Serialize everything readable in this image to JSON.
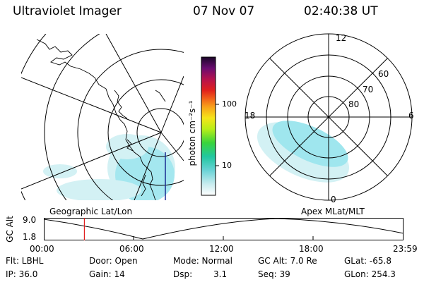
{
  "header": {
    "title": "Ultraviolet Imager",
    "date": "07 Nov 07",
    "time": "02:40:38 UT"
  },
  "colorbar": {
    "unit_label": "photon cm⁻²s⁻¹",
    "tick_100": "100",
    "tick_10": "10"
  },
  "polar": {
    "mlt_12": "12",
    "mlt_18": "18",
    "mlt_6": "6",
    "mlt_0": "0",
    "lat_60": "60",
    "lat_70": "70",
    "lat_80": "80"
  },
  "panel_labels": {
    "left": "Geographic Lat/Lon",
    "right": "Apex MLat/MLT"
  },
  "timeline": {
    "y_label": "GC Alt",
    "y_high": "9.0",
    "y_low": "1.8",
    "ticks": [
      "00:00",
      "06:00",
      "12:00",
      "18:00",
      "23:59"
    ],
    "current_fraction": 0.112
  },
  "info": {
    "filter": "Flt: LBHL",
    "door": "Door: Open",
    "mode": "Mode: Normal",
    "gc_alt": "GC Alt: 7.0 Re",
    "glat": "GLat: -65.8",
    "ip": "IP: 36.0",
    "gain": "Gain: 14",
    "dsp_label": "Dsp:",
    "dsp_value": "3.1",
    "seq": "Seq: 39",
    "glon": "GLon: 254.3"
  },
  "colors": {
    "aurora": "#9fe6ee",
    "aurora_light": "#d3f1f4",
    "coast": "#000000",
    "marker": "#e02020",
    "track": "#1a2a90"
  }
}
